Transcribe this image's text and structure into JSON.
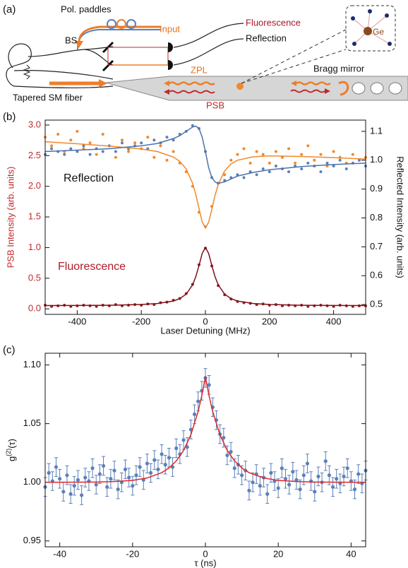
{
  "diagram": {
    "panel_label": "(a)",
    "pol_paddles": "Pol. paddles",
    "input": "Input",
    "fluorescence": "Fluorescence",
    "reflection": "Reflection",
    "bs": "BS",
    "zpl": "ZPL",
    "bragg_mirror": "Bragg mirror",
    "ge": "Ge",
    "tapered_fiber": "Tapered SM fiber",
    "psb": "PSB"
  },
  "chart_data": [
    {
      "type": "scatter",
      "panel_label": "(b)",
      "xlabel": "Laser Detuning (MHz)",
      "ylabel": "PSB Intensity (arb. units)",
      "y2label": "Reflected Intensity (arb. units)",
      "annotations": [
        "Reflection",
        "Fluorescence"
      ],
      "xlim": [
        -500,
        500
      ],
      "xticks": [
        -400,
        -200,
        0,
        200,
        400
      ],
      "ylim": [
        -0.09,
        3.08
      ],
      "yticks": [
        {
          "value": 0,
          "label": "0.0"
        },
        0.5,
        {
          "value": 1,
          "label": "1.0"
        },
        1.5,
        {
          "value": 2,
          "label": "2.0"
        },
        2.5,
        {
          "value": 3,
          "label": "3.0"
        }
      ],
      "y2lim": [
        0.466,
        1.139
      ],
      "y2ticks": [
        0.5,
        0.6,
        0.7,
        0.8,
        0.9,
        {
          "value": 1,
          "label": "1.0"
        },
        1.1
      ],
      "series": [
        {
          "mode": "markers",
          "axis": "y2",
          "color": "#f0892e",
          "x": [
            -500,
            -480,
            -460,
            -440,
            -420,
            -400,
            -380,
            -360,
            -340,
            -320,
            -300,
            -280,
            -260,
            -240,
            -220,
            -200,
            -180,
            -160,
            -140,
            -120,
            -100,
            -80,
            -60,
            -40,
            -20,
            0,
            20,
            40,
            60,
            80,
            100,
            120,
            140,
            160,
            180,
            200,
            220,
            240,
            260,
            280,
            300,
            320,
            340,
            360,
            380,
            400,
            420,
            440,
            460,
            480,
            500
          ],
          "values": [
            1.08,
            1.05,
            1.09,
            1.03,
            1.07,
            1.1,
            1.04,
            1.06,
            1.02,
            1.09,
            1.05,
            1.01,
            1.07,
            1.03,
            1.06,
            1.04,
            1.08,
            1.01,
            1.05,
            1.0,
            1.03,
            0.99,
            0.96,
            0.91,
            0.82,
            0.77,
            0.84,
            0.92,
            0.95,
            1.0,
            1.02,
            1.04,
            0.99,
            1.03,
            1.02,
            0.99,
            1.03,
            1.01,
            1.04,
            0.99,
            1.02,
            1.05,
            1.0,
            1.02,
            0.98,
            1.03,
            1.01,
            0.99,
            1.02,
            1.0,
            1.01
          ]
        },
        {
          "mode": "markers",
          "axis": "y2",
          "color": "#5b80b8",
          "x": [
            -500,
            -480,
            -460,
            -440,
            -420,
            -400,
            -380,
            -360,
            -340,
            -320,
            -300,
            -280,
            -260,
            -240,
            -220,
            -200,
            -180,
            -160,
            -140,
            -120,
            -100,
            -80,
            -60,
            -40,
            -20,
            0,
            20,
            40,
            60,
            80,
            100,
            120,
            140,
            160,
            180,
            200,
            220,
            240,
            260,
            280,
            300,
            320,
            340,
            360,
            380,
            400,
            420,
            440,
            460,
            480,
            500
          ],
          "values": [
            1.02,
            1.04,
            1.03,
            1.02,
            1.04,
            1.03,
            1.05,
            1.02,
            1.04,
            1.03,
            1.05,
            1.03,
            1.06,
            1.04,
            1.05,
            1.06,
            1.04,
            1.07,
            1.06,
            1.08,
            1.07,
            1.09,
            1.1,
            1.12,
            1.11,
            1.03,
            0.94,
            0.92,
            0.93,
            0.94,
            0.95,
            0.94,
            0.96,
            0.95,
            0.97,
            0.96,
            0.98,
            0.97,
            0.96,
            0.98,
            0.97,
            0.99,
            0.98,
            0.96,
            0.99,
            0.98,
            1.0,
            0.97,
            0.99,
            1.0,
            0.98
          ]
        },
        {
          "mode": "markers",
          "axis": "y",
          "color": "#9b1b22",
          "x": [
            -500,
            -480,
            -460,
            -440,
            -420,
            -400,
            -380,
            -360,
            -340,
            -320,
            -300,
            -280,
            -260,
            -240,
            -220,
            -200,
            -180,
            -160,
            -140,
            -120,
            -100,
            -80,
            -60,
            -40,
            -20,
            0,
            20,
            40,
            60,
            80,
            100,
            120,
            140,
            160,
            180,
            200,
            220,
            240,
            260,
            280,
            300,
            320,
            340,
            360,
            380,
            400,
            420,
            440,
            460,
            480,
            500
          ],
          "values": [
            0.06,
            0.04,
            0.05,
            0.06,
            0.04,
            0.05,
            0.06,
            0.05,
            0.04,
            0.06,
            0.05,
            0.07,
            0.05,
            0.06,
            0.07,
            0.06,
            0.08,
            0.07,
            0.1,
            0.11,
            0.14,
            0.17,
            0.25,
            0.4,
            0.72,
            0.99,
            0.7,
            0.38,
            0.23,
            0.16,
            0.12,
            0.1,
            0.09,
            0.07,
            0.08,
            0.06,
            0.07,
            0.05,
            0.06,
            0.05,
            0.06,
            0.04,
            0.05,
            0.06,
            0.05,
            0.04,
            0.06,
            0.05,
            0.04,
            0.05,
            0.05
          ]
        },
        {
          "mode": "lines",
          "axis": "y2",
          "color": "#ee8a2c",
          "x": [
            -500,
            -400,
            -300,
            -200,
            -150,
            -100,
            -80,
            -60,
            -40,
            -30,
            -20,
            -10,
            0,
            10,
            20,
            30,
            40,
            60,
            80,
            100,
            150,
            200,
            300,
            400,
            500
          ],
          "values": [
            1.064,
            1.057,
            1.049,
            1.039,
            1.03,
            1.011,
            0.996,
            0.97,
            0.92,
            0.881,
            0.833,
            0.786,
            0.765,
            0.785,
            0.83,
            0.878,
            0.916,
            0.963,
            0.987,
            1.0,
            1.012,
            1.015,
            1.013,
            1.009,
            1.004
          ]
        },
        {
          "mode": "lines",
          "axis": "y2",
          "color": "#4f72a8",
          "x": [
            -500,
            -400,
            -300,
            -200,
            -150,
            -100,
            -80,
            -60,
            -40,
            -30,
            -20,
            -10,
            0,
            10,
            20,
            30,
            40,
            60,
            80,
            100,
            150,
            200,
            300,
            400,
            500
          ],
          "values": [
            1.03,
            1.035,
            1.04,
            1.05,
            1.058,
            1.075,
            1.085,
            1.1,
            1.115,
            1.118,
            1.11,
            1.08,
            1.03,
            0.975,
            0.94,
            0.925,
            0.92,
            0.925,
            0.935,
            0.945,
            0.958,
            0.967,
            0.978,
            0.985,
            0.99
          ]
        },
        {
          "mode": "lines",
          "axis": "y",
          "color": "#7a1218",
          "x": [
            -500,
            -400,
            -300,
            -200,
            -150,
            -100,
            -80,
            -60,
            -40,
            -30,
            -20,
            -10,
            0,
            10,
            20,
            30,
            40,
            60,
            80,
            100,
            150,
            200,
            300,
            400,
            500
          ],
          "values": [
            0.054,
            0.055,
            0.059,
            0.071,
            0.087,
            0.128,
            0.167,
            0.24,
            0.392,
            0.525,
            0.708,
            0.905,
            1.0,
            0.905,
            0.708,
            0.525,
            0.392,
            0.24,
            0.167,
            0.128,
            0.087,
            0.071,
            0.059,
            0.055,
            0.054
          ]
        }
      ]
    },
    {
      "type": "scatter",
      "panel_label": "(c)",
      "xlabel": "τ (ns)",
      "ylabel": {
        "base": "g",
        "sup": "(2)",
        "rest": "(τ)"
      },
      "xlim": [
        -44,
        44
      ],
      "xticks": [
        -40,
        -20,
        0,
        20,
        40
      ],
      "ylim": [
        0.945,
        1.11
      ],
      "yticks": [
        0.95,
        {
          "value": 1,
          "label": "1.00"
        },
        1.05,
        {
          "value": 1.1,
          "label": "1.10"
        }
      ],
      "series": [
        {
          "mode": "markers",
          "axis": "y",
          "color": "#5b80b8",
          "error": 0.008,
          "x": [
            -44,
            -43,
            -42,
            -41,
            -40,
            -39,
            -38,
            -37,
            -36,
            -35,
            -34,
            -33,
            -32,
            -31,
            -30,
            -29,
            -28,
            -27,
            -26,
            -25,
            -24,
            -23,
            -22,
            -21,
            -20,
            -19,
            -18,
            -17,
            -16,
            -15,
            -14,
            -13,
            -12,
            -11,
            -10,
            -9,
            -8,
            -7,
            -6,
            -5,
            -4,
            -3,
            -2,
            -1,
            0,
            1,
            2,
            3,
            4,
            5,
            6,
            7,
            8,
            9,
            10,
            11,
            12,
            13,
            14,
            15,
            16,
            17,
            18,
            19,
            20,
            21,
            22,
            23,
            24,
            25,
            26,
            27,
            28,
            29,
            30,
            31,
            32,
            33,
            34,
            35,
            36,
            37,
            38,
            39,
            40,
            41,
            42,
            43,
            44
          ],
          "values": [
            0.996,
            1.008,
            1.001,
            1.013,
            1.003,
            0.992,
            1.006,
            0.99,
            0.997,
            1.002,
            0.989,
            1.004,
            1.001,
            1.012,
            0.998,
            1.007,
            1.014,
            0.996,
            1.003,
            1.01,
            0.994,
            1.0,
            1.011,
            1.004,
            0.997,
            1.006,
            1.013,
            1.002,
            1.016,
            1.008,
            1.019,
            1.011,
            1.024,
            1.015,
            1.021,
            1.013,
            1.029,
            1.024,
            1.036,
            1.03,
            1.045,
            1.058,
            1.069,
            1.078,
            1.089,
            1.083,
            1.064,
            1.053,
            1.041,
            1.038,
            1.023,
            1.026,
            1.012,
            1.015,
            1.006,
            1.01,
            0.993,
            1.0,
            1.007,
            0.997,
            1.004,
            0.99,
            1.008,
            1.001,
            0.995,
            1.012,
            1.003,
            0.998,
            1.009,
            1.002,
            0.994,
            1.006,
            1.016,
            1.001,
            0.992,
            1.005,
            1.0,
            1.018,
            1.006,
            0.996,
            1.003,
            0.999,
            1.005,
            1.012,
            1.001,
            0.994,
            1.007,
            0.999,
            1.01
          ]
        },
        {
          "mode": "lines",
          "axis": "y",
          "color": "#e0262a",
          "x": [
            -44,
            -40,
            -35,
            -30,
            -25,
            -20,
            -16,
            -12,
            -10,
            -8,
            -6,
            -4,
            -2,
            -1,
            0,
            1,
            2,
            4,
            6,
            8,
            10,
            12,
            16,
            20,
            25,
            30,
            35,
            40,
            44
          ],
          "values": [
            1.0,
            1.0,
            1.0001,
            1.0002,
            1.0006,
            1.0016,
            1.0037,
            1.0082,
            1.0122,
            1.0182,
            1.0271,
            1.0404,
            1.0603,
            1.0737,
            1.09,
            1.0737,
            1.0603,
            1.0404,
            1.0271,
            1.0182,
            1.0122,
            1.0082,
            1.0037,
            1.0016,
            1.0006,
            1.0002,
            1.0001,
            1.0,
            1.0
          ]
        }
      ]
    }
  ]
}
